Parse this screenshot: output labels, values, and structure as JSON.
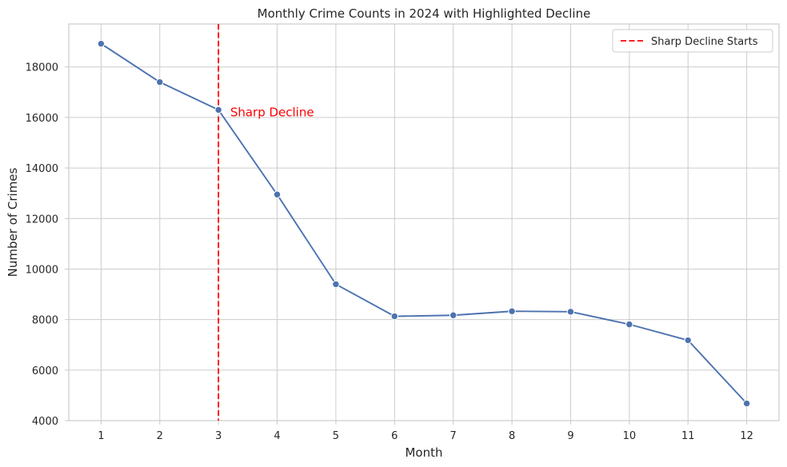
{
  "chart_data": {
    "type": "line",
    "title": "Monthly Crime Counts in 2024 with Highlighted Decline",
    "xlabel": "Month",
    "ylabel": "Number of Crimes",
    "x": [
      1,
      2,
      3,
      4,
      5,
      6,
      7,
      8,
      9,
      10,
      11,
      12
    ],
    "series": [
      {
        "values": [
          18920,
          17400,
          16300,
          12950,
          9400,
          8130,
          8170,
          8330,
          8310,
          7810,
          7180,
          4680
        ],
        "color": "#4c72b0"
      }
    ],
    "xlim": [
      0.45,
      12.55
    ],
    "ylim": [
      4000,
      19700
    ],
    "xticks": [
      "1",
      "2",
      "3",
      "4",
      "5",
      "6",
      "7",
      "8",
      "9",
      "10",
      "11",
      "12"
    ],
    "yticks": [
      4000,
      6000,
      8000,
      10000,
      12000,
      14000,
      16000,
      18000
    ],
    "grid": true,
    "vline": {
      "x": 3,
      "color": "#ff0000",
      "style": "dashed",
      "label": "Sharp Decline Starts"
    },
    "annotation": {
      "text": "Sharp Decline",
      "x": 3.2,
      "y": 16050,
      "color": "#ff0000"
    },
    "legend": {
      "position": "top-right",
      "entries": [
        "Sharp Decline Starts"
      ]
    }
  }
}
